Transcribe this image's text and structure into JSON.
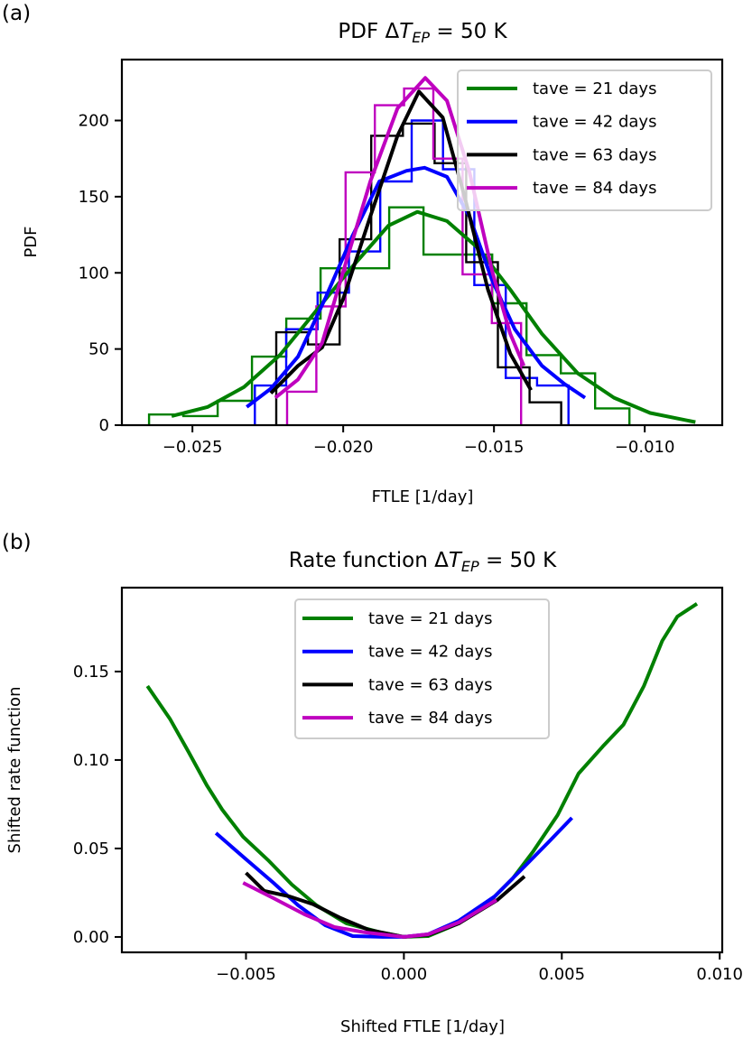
{
  "chart_data": [
    {
      "type": "line",
      "panel_label": "(a)",
      "title": {
        "prefix": "PDF ",
        "delta": "Δ",
        "var": "T",
        "sub": "EP",
        "suffix": " = 50 K"
      },
      "xlabel": "FTLE [1/day]",
      "ylabel": "PDF",
      "xlim": [
        -0.02734,
        -0.00743
      ],
      "ylim": [
        0,
        240
      ],
      "xticks": [
        -0.025,
        -0.02,
        -0.015,
        -0.01
      ],
      "xtick_labels": [
        "−0.025",
        "−0.020",
        "−0.015",
        "−0.010"
      ],
      "yticks": [
        0,
        50,
        100,
        150,
        200
      ],
      "ytick_labels": [
        "0",
        "50",
        "100",
        "150",
        "200"
      ],
      "grid": false,
      "legend_position": "top-right",
      "series": [
        {
          "name": "tave = 21 days",
          "color": "#008000",
          "histogram": {
            "start": -0.02644,
            "bin_width": 0.001138,
            "heights": [
              7,
              6,
              16,
              45,
              70,
              103,
              103,
              143,
              112,
              112,
              80,
              46,
              34,
              11
            ]
          },
          "kde": [
            [
              -0.02569,
              6
            ],
            [
              -0.02449,
              12
            ],
            [
              -0.02329,
              25
            ],
            [
              -0.0221,
              46
            ],
            [
              -0.0209,
              75
            ],
            [
              -0.0197,
              104
            ],
            [
              -0.0185,
              131
            ],
            [
              -0.01754,
              140
            ],
            [
              -0.01656,
              134
            ],
            [
              -0.01551,
              116
            ],
            [
              -0.01446,
              89
            ],
            [
              -0.01341,
              60
            ],
            [
              -0.01222,
              34
            ],
            [
              -0.01102,
              18
            ],
            [
              -0.00982,
              8
            ],
            [
              -0.00832,
              2
            ]
          ]
        },
        {
          "name": "tave = 42 days",
          "color": "#0000ff",
          "histogram": {
            "start": -0.02293,
            "bin_width": 0.00104,
            "heights": [
              26,
              63,
              87,
              114,
              160,
              200,
              168,
              92,
              31,
              26
            ]
          },
          "kde": [
            [
              -0.0232,
              12
            ],
            [
              -0.0224,
              24
            ],
            [
              -0.0215,
              45
            ],
            [
              -0.0206,
              83
            ],
            [
              -0.0197,
              124
            ],
            [
              -0.0188,
              160
            ],
            [
              -0.0179,
              167
            ],
            [
              -0.0173,
              169
            ],
            [
              -0.01656,
              163
            ],
            [
              -0.01581,
              137
            ],
            [
              -0.01506,
              95
            ],
            [
              -0.01431,
              63
            ],
            [
              -0.01341,
              39
            ],
            [
              -0.01266,
              27
            ],
            [
              -0.01198,
              18
            ]
          ]
        },
        {
          "name": "tave = 63 days",
          "color": "#000000",
          "histogram": {
            "start": -0.02222,
            "bin_width": 0.00105,
            "heights": [
              61,
              53,
              122,
              190,
              198,
              172,
              107,
              38,
              15
            ]
          },
          "kde": [
            [
              -0.0224,
              21
            ],
            [
              -0.0215,
              39
            ],
            [
              -0.0207,
              51
            ],
            [
              -0.02,
              83
            ],
            [
              -0.0191,
              137
            ],
            [
              -0.0182,
              190
            ],
            [
              -0.01749,
              219
            ],
            [
              -0.0167,
              202
            ],
            [
              -0.01596,
              149
            ],
            [
              -0.0152,
              89
            ],
            [
              -0.01446,
              47
            ],
            [
              -0.01377,
              23
            ]
          ]
        },
        {
          "name": "tave = 84 days",
          "color": "#bf00bf",
          "histogram": {
            "start": -0.02186,
            "bin_width": 0.00097,
            "heights": [
              22,
              78,
              166,
              210,
              221,
              175,
              99,
              67
            ]
          },
          "kde": [
            [
              -0.02225,
              18
            ],
            [
              -0.0215,
              30
            ],
            [
              -0.0207,
              54
            ],
            [
              -0.02,
              101
            ],
            [
              -0.0191,
              160
            ],
            [
              -0.0182,
              208
            ],
            [
              -0.01728,
              228
            ],
            [
              -0.01656,
              213
            ],
            [
              -0.01581,
              166
            ],
            [
              -0.01506,
              101
            ],
            [
              -0.01446,
              60
            ],
            [
              -0.01401,
              39
            ]
          ]
        }
      ]
    },
    {
      "type": "line",
      "panel_label": "(b)",
      "title": {
        "prefix": "Rate function ",
        "delta": "Δ",
        "var": "T",
        "sub": "EP",
        "suffix": " = 50 K"
      },
      "xlabel": "Shifted FTLE [1/day]",
      "ylabel": "Shifted rate function",
      "xlim": [
        -0.00893,
        0.01008
      ],
      "ylim": [
        -0.0087,
        0.1974
      ],
      "xticks": [
        -0.005,
        0.0,
        0.005,
        0.01
      ],
      "xtick_labels": [
        "−0.005",
        "0.000",
        "0.005",
        "0.010"
      ],
      "yticks": [
        0.0,
        0.05,
        0.1,
        0.15
      ],
      "ytick_labels": [
        "0.00",
        "0.05",
        "0.10",
        "0.15"
      ],
      "grid": false,
      "legend_position": "top-center",
      "series": [
        {
          "name": "tave = 21 days",
          "color": "#008000",
          "points": [
            [
              -0.00812,
              0.1418
            ],
            [
              -0.0074,
              0.123
            ],
            [
              -0.00682,
              0.1046
            ],
            [
              -0.00624,
              0.0857
            ],
            [
              -0.00575,
              0.0719
            ],
            [
              -0.00509,
              0.0566
            ],
            [
              -0.0043,
              0.0434
            ],
            [
              -0.00355,
              0.0296
            ],
            [
              -0.00277,
              0.0179
            ],
            [
              -0.00182,
              0.0077
            ],
            [
              -0.00075,
              0.0026
            ],
            [
              0,
              0
            ],
            [
              0.00077,
              0.0005
            ],
            [
              0.00174,
              0.0077
            ],
            [
              0.00268,
              0.0194
            ],
            [
              0.00345,
              0.0332
            ],
            [
              0.0041,
              0.0485
            ],
            [
              0.00487,
              0.0689
            ],
            [
              0.00553,
              0.0923
            ],
            [
              0.0063,
              0.1077
            ],
            [
              0.00695,
              0.1199
            ],
            [
              0.0076,
              0.1418
            ],
            [
              0.00818,
              0.1673
            ],
            [
              0.00866,
              0.1811
            ],
            [
              0.00928,
              0.1883
            ]
          ]
        },
        {
          "name": "tave = 42 days",
          "color": "#0000ff",
          "points": [
            [
              -0.00595,
              0.0587
            ],
            [
              -0.005,
              0.0439
            ],
            [
              -0.00413,
              0.0306
            ],
            [
              -0.00335,
              0.0179
            ],
            [
              -0.00249,
              0.0066
            ],
            [
              -0.00162,
              0.0005
            ],
            [
              -0.00066,
              0
            ],
            [
              0,
              0
            ],
            [
              0.00077,
              0.0015
            ],
            [
              0.00174,
              0.0092
            ],
            [
              0.00288,
              0.023
            ],
            [
              0.00382,
              0.0398
            ],
            [
              0.00458,
              0.0536
            ],
            [
              0.00532,
              0.0673
            ]
          ]
        },
        {
          "name": "tave = 63 days",
          "color": "#000000",
          "points": [
            [
              -0.005,
              0.0362
            ],
            [
              -0.00442,
              0.026
            ],
            [
              -0.00364,
              0.023
            ],
            [
              -0.00286,
              0.0184
            ],
            [
              -0.002,
              0.0107
            ],
            [
              -0.00113,
              0.0041
            ],
            [
              0,
              0
            ],
            [
              0.00077,
              0.0012
            ],
            [
              0.00174,
              0.0077
            ],
            [
              0.00296,
              0.0209
            ],
            [
              0.00382,
              0.0342
            ]
          ]
        },
        {
          "name": "tave = 84 days",
          "color": "#bf00bf",
          "points": [
            [
              -0.00509,
              0.0306
            ],
            [
              -0.00413,
              0.0219
            ],
            [
              -0.00315,
              0.0128
            ],
            [
              -0.0022,
              0.0056
            ],
            [
              -0.00124,
              0.0026
            ],
            [
              0,
              0
            ],
            [
              0.00077,
              0.0015
            ],
            [
              0.00174,
              0.0082
            ],
            [
              0.00293,
              0.0209
            ]
          ]
        }
      ]
    }
  ]
}
